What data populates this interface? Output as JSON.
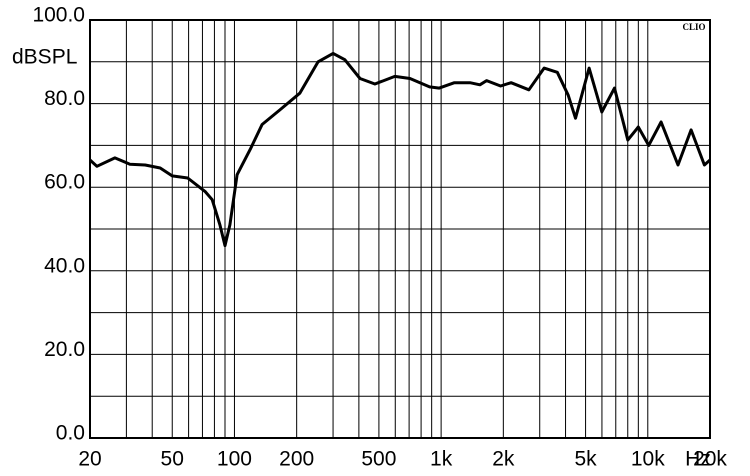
{
  "chart_data": {
    "type": "line",
    "y_label": "dBSPL",
    "x_unit": "Hz",
    "watermark": "CLIO",
    "log_x": true,
    "grid": true,
    "xlim": [
      20,
      20000
    ],
    "ylim": [
      0,
      100
    ],
    "yticks": [
      {
        "value": 0,
        "label": "0.0"
      },
      {
        "value": 10,
        "label": null
      },
      {
        "value": 20,
        "label": "20.0"
      },
      {
        "value": 30,
        "label": null
      },
      {
        "value": 40,
        "label": "40.0"
      },
      {
        "value": 50,
        "label": null
      },
      {
        "value": 60,
        "label": "60.0"
      },
      {
        "value": 70,
        "label": null
      },
      {
        "value": 80,
        "label": "80.0"
      },
      {
        "value": 90,
        "label": null
      },
      {
        "value": 100,
        "label": "100.0"
      }
    ],
    "xticks": [
      20,
      {
        "value": 30,
        "label": null
      },
      {
        "value": 40,
        "label": null
      },
      50,
      {
        "value": 60,
        "label": null
      },
      {
        "value": 70,
        "label": null
      },
      {
        "value": 80,
        "label": null
      },
      {
        "value": 90,
        "label": null
      },
      100,
      200,
      {
        "value": 300,
        "label": null
      },
      {
        "value": 400,
        "label": null
      },
      500,
      {
        "value": 600,
        "label": null
      },
      {
        "value": 700,
        "label": null
      },
      {
        "value": 800,
        "label": null
      },
      {
        "value": 900,
        "label": null
      },
      {
        "value": 1000,
        "label": "1k"
      },
      {
        "value": 2000,
        "label": "2k"
      },
      {
        "value": 3000,
        "label": null
      },
      {
        "value": 4000,
        "label": null
      },
      {
        "value": 5000,
        "label": "5k"
      },
      {
        "value": 6000,
        "label": null
      },
      {
        "value": 7000,
        "label": null
      },
      {
        "value": 8000,
        "label": null
      },
      {
        "value": 9000,
        "label": null
      },
      {
        "value": 10000,
        "label": "10k"
      },
      {
        "value": 20000,
        "label": "20k"
      }
    ],
    "series": [
      {
        "name": null,
        "color": "#000000",
        "x": [
          20,
          21.6,
          26.4,
          31.2,
          37,
          43.7,
          50,
          59.4,
          72,
          78,
          85,
          90,
          95,
          103,
          119,
          136,
          166,
          207,
          254,
          300,
          342,
          405,
          478,
          597,
          707,
          880,
          979,
          1160,
          1380,
          1540,
          1660,
          1940,
          2180,
          2660,
          3150,
          3650,
          4120,
          4470,
          5200,
          5990,
          6900,
          8000,
          9000,
          10100,
          11600,
          14000,
          16200,
          18800,
          20000
        ],
        "values": [
          66.5,
          65,
          67,
          65.5,
          65.3,
          64.6,
          62.7,
          62.2,
          59,
          57,
          51,
          46,
          51,
          63,
          69,
          75,
          78.5,
          82.5,
          90,
          92,
          90.5,
          86,
          84.7,
          86.5,
          86,
          84,
          83.7,
          85,
          85,
          84.5,
          85.5,
          84.2,
          85,
          83.3,
          88.5,
          87.5,
          82,
          76.5,
          88.5,
          78,
          83.7,
          71.3,
          74.4,
          70,
          75.6,
          65.3,
          73.7,
          65.3,
          66.5
        ]
      }
    ]
  }
}
